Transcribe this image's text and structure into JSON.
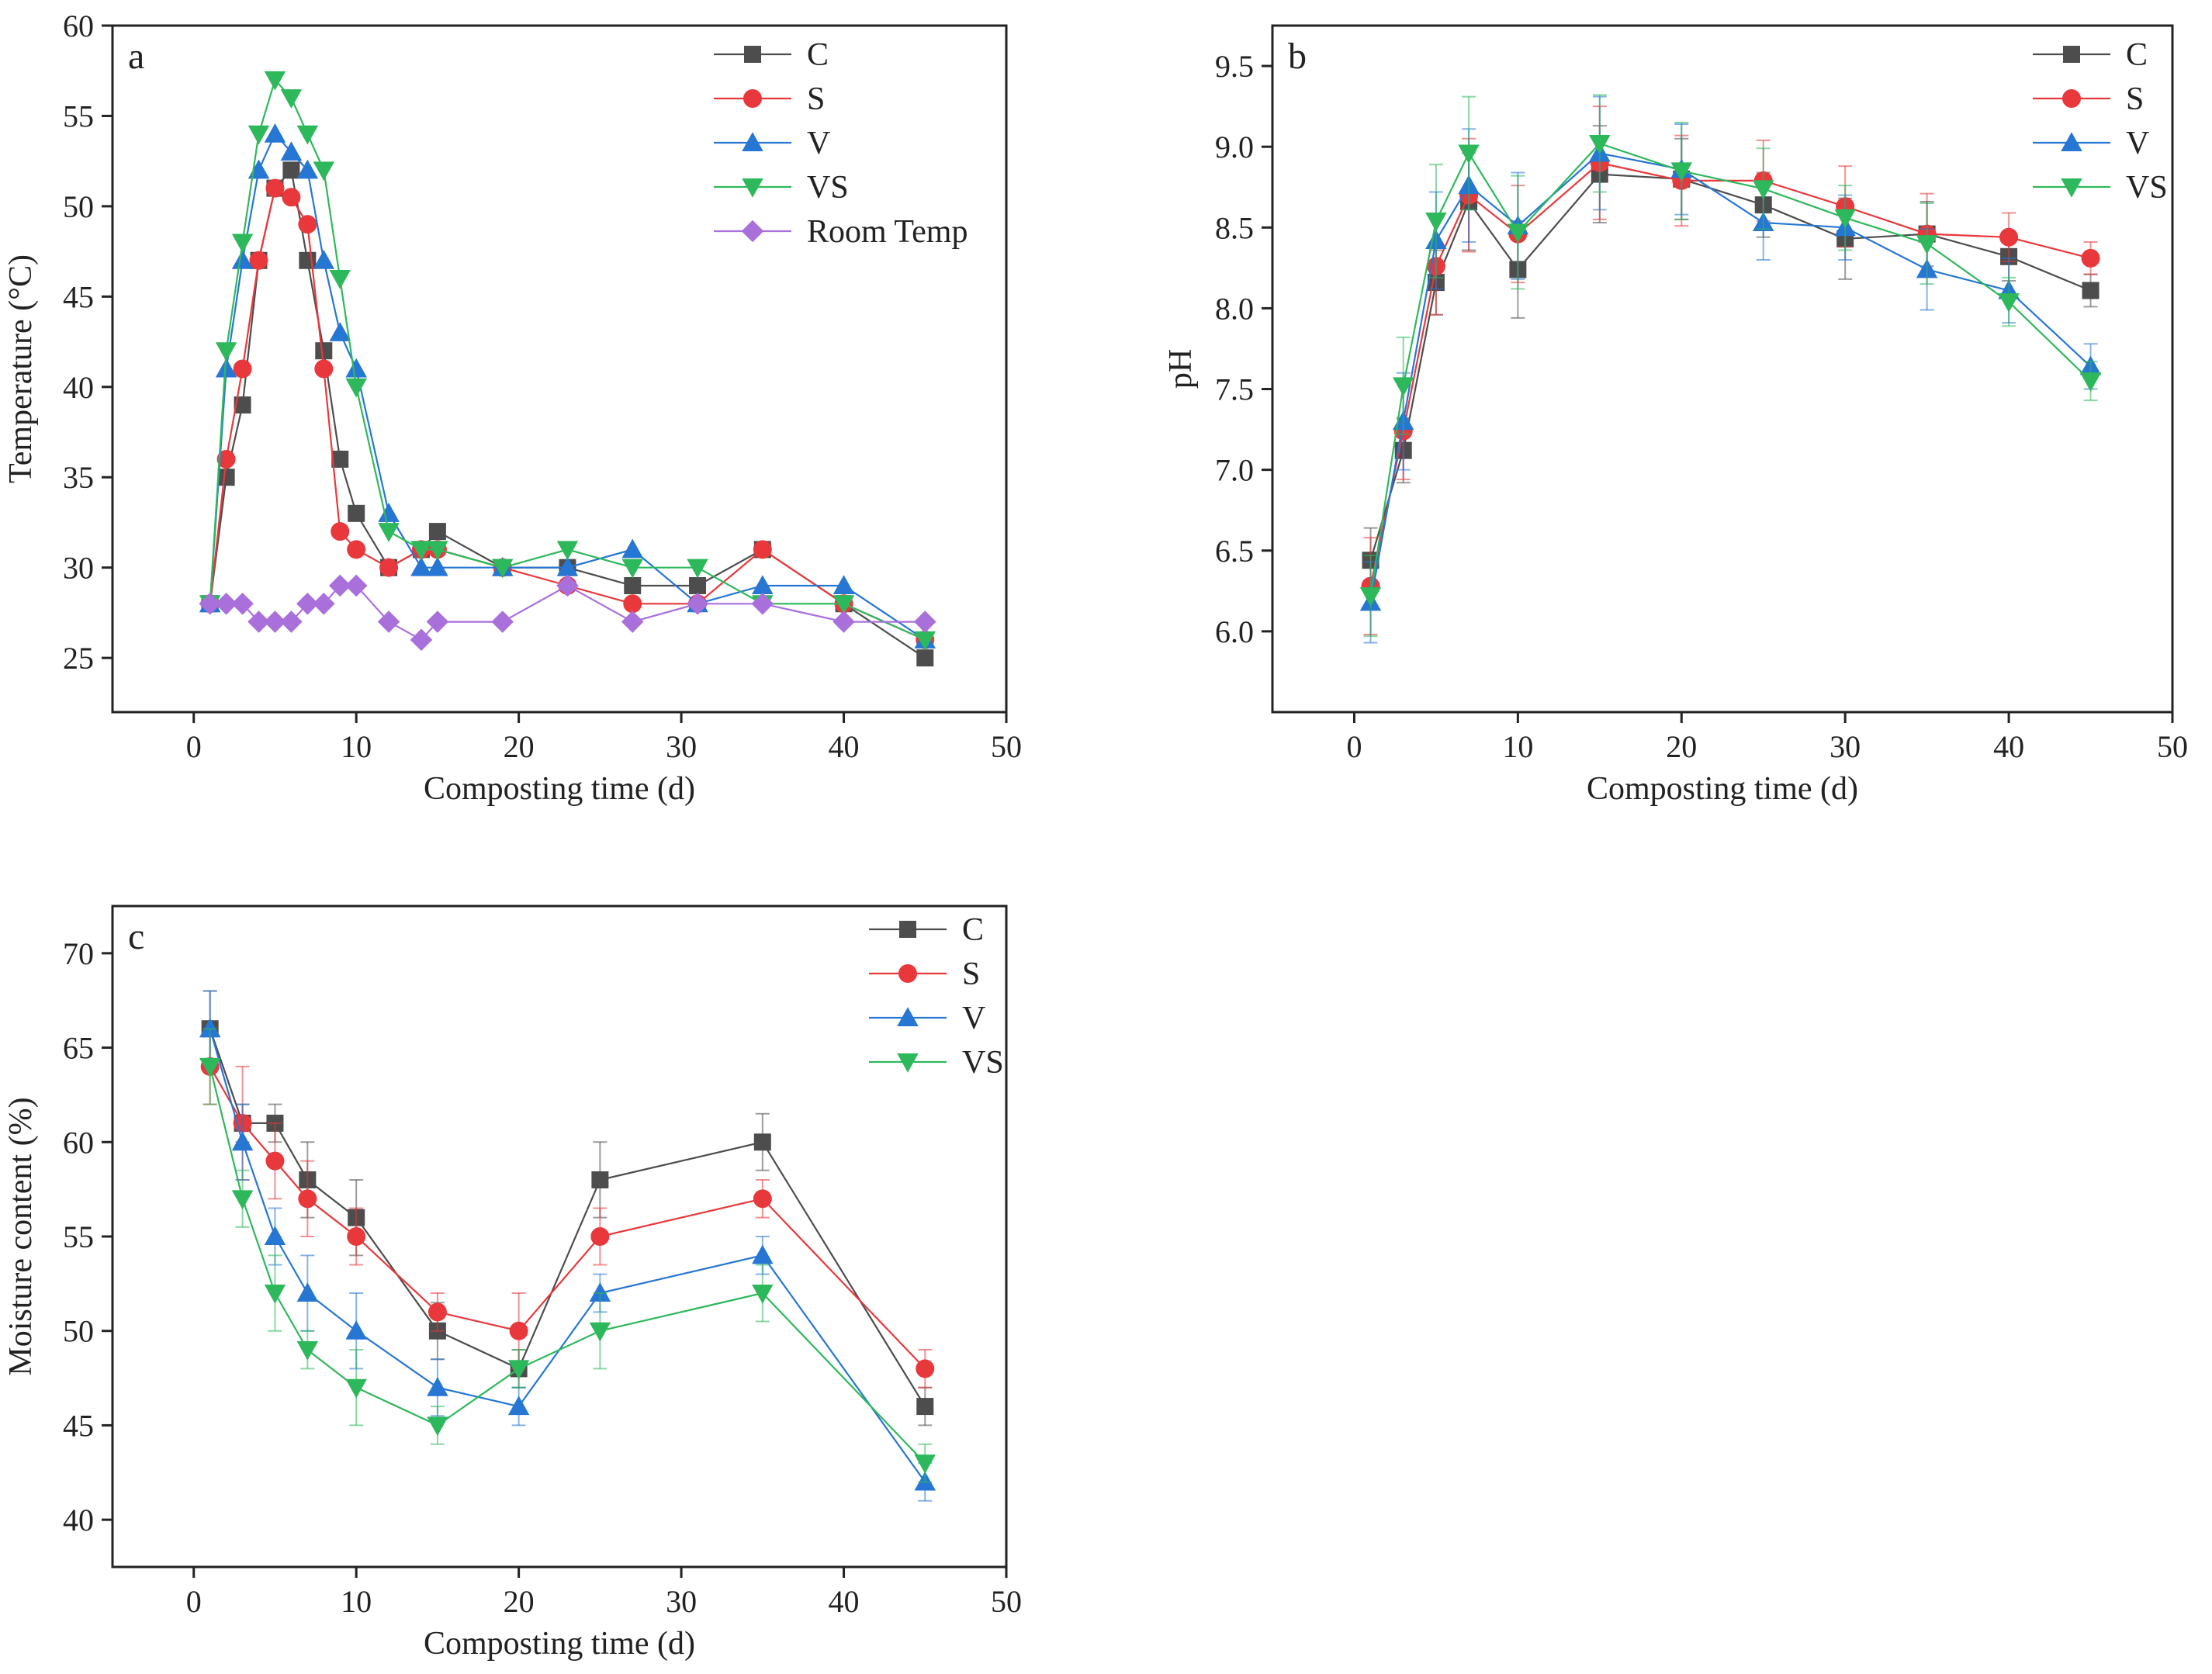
{
  "colors": {
    "C": "#4d4d4d",
    "S": "#e8383b",
    "V": "#2676d3",
    "VS": "#2eb85c",
    "Room Temp": "#a970dc"
  },
  "markers": {
    "C": "square",
    "S": "circle",
    "V": "triangle-up",
    "VS": "triangle-down",
    "Room Temp": "diamond"
  },
  "chart_data": [
    {
      "id": "a",
      "panel_label": "a",
      "type": "line",
      "xlabel": "Composting time (d)",
      "ylabel": "Temperature (°C)",
      "xlim": [
        -5,
        50
      ],
      "ylim": [
        22,
        60
      ],
      "xticks": [
        0,
        10,
        20,
        30,
        40,
        50
      ],
      "yticks": [
        25,
        30,
        35,
        40,
        45,
        50,
        55,
        60
      ],
      "ytick_decimals": 0,
      "legend_position": "top-right",
      "series": [
        {
          "name": "C",
          "x": [
            1,
            2,
            3,
            4,
            5,
            6,
            7,
            8,
            9,
            10,
            12,
            14,
            15,
            19,
            23,
            27,
            31,
            35,
            40,
            45
          ],
          "y": [
            28,
            35,
            39,
            47,
            51,
            52,
            47,
            42,
            36,
            33,
            30,
            31,
            32,
            30,
            30,
            29,
            29,
            31,
            28,
            25
          ]
        },
        {
          "name": "S",
          "x": [
            1,
            2,
            3,
            4,
            5,
            6,
            7,
            8,
            9,
            10,
            12,
            14,
            15,
            19,
            23,
            27,
            31,
            35,
            40,
            45
          ],
          "y": [
            28,
            36,
            41,
            47,
            51,
            50.5,
            49,
            41,
            32,
            31,
            30,
            31,
            31,
            30,
            29,
            28,
            28,
            31,
            28,
            26
          ]
        },
        {
          "name": "V",
          "x": [
            1,
            2,
            3,
            4,
            5,
            6,
            7,
            8,
            9,
            10,
            12,
            14,
            15,
            19,
            23,
            27,
            31,
            35,
            40,
            45
          ],
          "y": [
            28,
            41,
            47,
            52,
            54,
            53,
            52,
            47,
            43,
            41,
            33,
            30,
            30,
            30,
            30,
            31,
            28,
            29,
            29,
            26
          ]
        },
        {
          "name": "VS",
          "x": [
            1,
            2,
            3,
            4,
            5,
            6,
            7,
            8,
            9,
            10,
            12,
            14,
            15,
            19,
            23,
            27,
            31,
            35,
            40,
            45
          ],
          "y": [
            28,
            42,
            48,
            54,
            57,
            56,
            54,
            52,
            46,
            40,
            32,
            31,
            31,
            30,
            31,
            30,
            30,
            28,
            28,
            26
          ]
        },
        {
          "name": "Room Temp",
          "x": [
            1,
            2,
            3,
            4,
            5,
            6,
            7,
            8,
            9,
            10,
            12,
            14,
            15,
            19,
            23,
            27,
            31,
            35,
            40,
            45
          ],
          "y": [
            28,
            28,
            28,
            27,
            27,
            27,
            28,
            28,
            29,
            29,
            27,
            26,
            27,
            27,
            29,
            27,
            28,
            28,
            27,
            27
          ]
        }
      ]
    },
    {
      "id": "b",
      "panel_label": "b",
      "type": "line",
      "xlabel": "Composting time (d)",
      "ylabel": "pH",
      "xlim": [
        -5,
        50
      ],
      "ylim": [
        5.5,
        9.75
      ],
      "xticks": [
        0,
        10,
        20,
        30,
        40,
        50
      ],
      "yticks": [
        6.0,
        6.5,
        7.0,
        7.5,
        8.0,
        8.5,
        9.0,
        9.5
      ],
      "ytick_decimals": 1,
      "legend_position": "top-right",
      "series": [
        {
          "name": "C",
          "x": [
            1,
            3,
            5,
            7,
            10,
            15,
            20,
            25,
            30,
            35,
            40,
            45
          ],
          "y": [
            6.44,
            7.12,
            8.16,
            8.66,
            8.24,
            8.83,
            8.8,
            8.64,
            8.43,
            8.46,
            8.32,
            8.11
          ],
          "err": [
            0.2,
            0.2,
            0.2,
            0.3,
            0.3,
            0.3,
            0.25,
            0.2,
            0.25,
            0.2,
            0.15,
            0.1
          ]
        },
        {
          "name": "S",
          "x": [
            1,
            3,
            5,
            7,
            10,
            15,
            20,
            25,
            30,
            35,
            40,
            45
          ],
          "y": [
            6.28,
            7.24,
            8.26,
            8.7,
            8.46,
            8.9,
            8.79,
            8.79,
            8.63,
            8.46,
            8.44,
            8.31
          ],
          "err": [
            0.3,
            0.3,
            0.3,
            0.35,
            0.3,
            0.35,
            0.28,
            0.25,
            0.25,
            0.25,
            0.15,
            0.1
          ]
        },
        {
          "name": "V",
          "x": [
            1,
            3,
            5,
            7,
            10,
            15,
            20,
            25,
            30,
            35,
            40,
            45
          ],
          "y": [
            6.18,
            7.3,
            8.42,
            8.76,
            8.51,
            8.96,
            8.86,
            8.53,
            8.5,
            8.24,
            8.11,
            7.64
          ],
          "err": [
            0.25,
            0.3,
            0.3,
            0.35,
            0.33,
            0.35,
            0.28,
            0.23,
            0.2,
            0.25,
            0.2,
            0.14
          ]
        },
        {
          "name": "VS",
          "x": [
            1,
            3,
            5,
            7,
            10,
            15,
            20,
            25,
            30,
            35,
            40,
            45
          ],
          "y": [
            6.22,
            7.52,
            8.54,
            8.96,
            8.47,
            9.02,
            8.85,
            8.74,
            8.56,
            8.4,
            8.04,
            7.55
          ],
          "err": [
            0.25,
            0.3,
            0.35,
            0.35,
            0.35,
            0.3,
            0.3,
            0.25,
            0.2,
            0.25,
            0.15,
            0.12
          ]
        }
      ]
    },
    {
      "id": "c",
      "panel_label": "c",
      "type": "line",
      "xlabel": "Composting time (d)",
      "ylabel": "Moisture content (%)",
      "xlim": [
        -5,
        50
      ],
      "ylim": [
        37.5,
        72.5
      ],
      "xticks": [
        0,
        10,
        20,
        30,
        40,
        50
      ],
      "yticks": [
        40,
        45,
        50,
        55,
        60,
        65,
        70
      ],
      "ytick_decimals": 0,
      "legend_position": "top-right",
      "series": [
        {
          "name": "C",
          "x": [
            1,
            3,
            5,
            7,
            10,
            15,
            20,
            25,
            35,
            45
          ],
          "y": [
            66,
            61,
            61,
            58,
            56,
            50,
            48,
            58,
            60,
            46
          ],
          "err": [
            2,
            1,
            1,
            2,
            2,
            1.5,
            1,
            2,
            1.5,
            1
          ]
        },
        {
          "name": "S",
          "x": [
            1,
            3,
            5,
            7,
            10,
            15,
            20,
            25,
            35,
            45
          ],
          "y": [
            64,
            61,
            59,
            57,
            55,
            51,
            50,
            55,
            57,
            48
          ],
          "err": [
            2,
            3,
            2,
            2,
            1.5,
            1,
            2,
            1.5,
            1,
            1
          ]
        },
        {
          "name": "V",
          "x": [
            1,
            3,
            5,
            7,
            10,
            15,
            20,
            25,
            35,
            45
          ],
          "y": [
            66,
            60,
            55,
            52,
            50,
            47,
            46,
            52,
            54,
            42
          ],
          "err": [
            2,
            2,
            1.5,
            2,
            2,
            1.5,
            1,
            1,
            1,
            1
          ]
        },
        {
          "name": "VS",
          "x": [
            1,
            3,
            5,
            7,
            10,
            15,
            20,
            25,
            35,
            45
          ],
          "y": [
            64,
            57,
            52,
            49,
            47,
            45,
            48,
            50,
            52,
            43
          ],
          "err": [
            2,
            1.5,
            2,
            1,
            2,
            1,
            1,
            2,
            1.5,
            1
          ]
        }
      ]
    }
  ]
}
